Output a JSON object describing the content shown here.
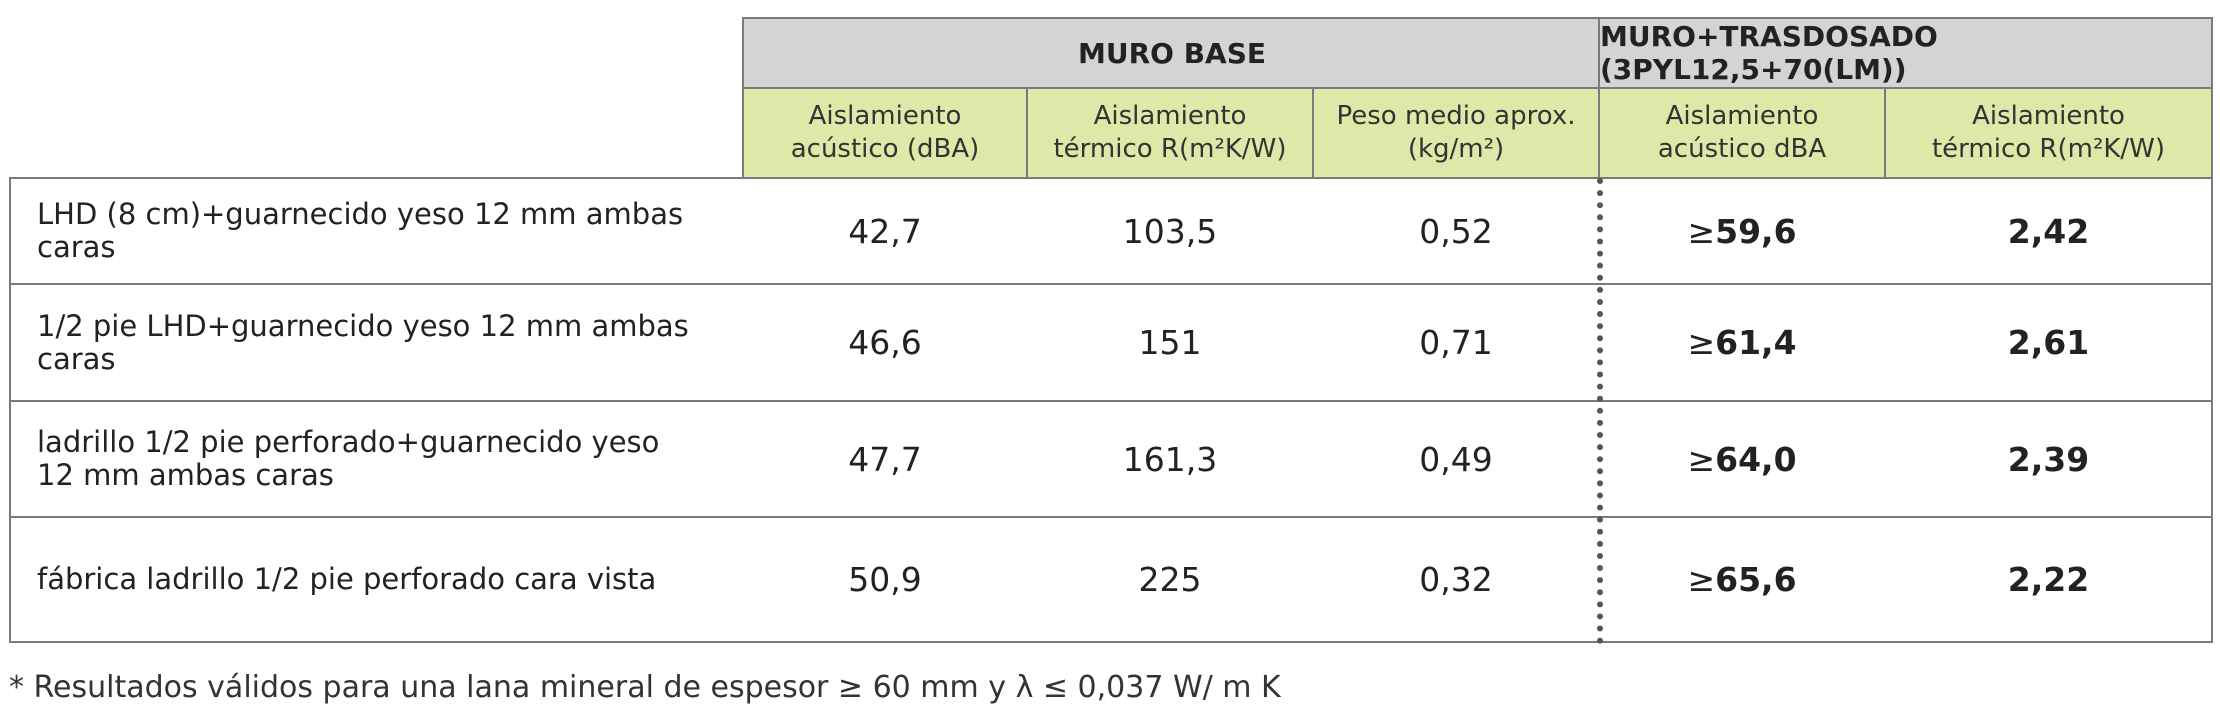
{
  "group_headers": [
    "MURO BASE",
    "MURO+TRASDOSADO (3PYL12,5+70(LM))"
  ],
  "sub_headers": [
    "Aislamiento\nacústico (dBA)",
    "Aislamiento\ntérmico  R(m²K/W)",
    "Peso medio aprox.\n(kg/m²)",
    "Aislamiento\nacústico dBA",
    "Aislamiento\ntérmico  R(m²K/W)"
  ],
  "rows": [
    {
      "label": "LHD (8 cm)+guarnecido yeso 12 mm ambas caras",
      "v1": "42,7",
      "v2": "103,5",
      "v3": "0,52",
      "v4_prefix": "≥",
      "v4": "59,6",
      "v5": "2,42"
    },
    {
      "label": "1/2 pie LHD+guarnecido yeso 12 mm ambas caras",
      "v1": "46,6",
      "v2": "151",
      "v3": "0,71",
      "v4_prefix": "≥",
      "v4": "61,4",
      "v5": "2,61"
    },
    {
      "label": "ladrillo 1/2 pie perforado+guarnecido yeso 12 mm ambas caras",
      "v1": "47,7",
      "v2": "161,3",
      "v3": "0,49",
      "v4_prefix": "≥",
      "v4": "64,0",
      "v5": "2,39"
    },
    {
      "label": "fábrica ladrillo 1/2 pie perforado cara vista",
      "v1": "50,9",
      "v2": "225",
      "v3": "0,32",
      "v4_prefix": "≥",
      "v4": "65,6",
      "v5": "2,22"
    }
  ],
  "footnote": "* Resultados válidos para una lana mineral de espesor ≥ 60 mm y λ ≤ 0,037 W/ m K"
}
